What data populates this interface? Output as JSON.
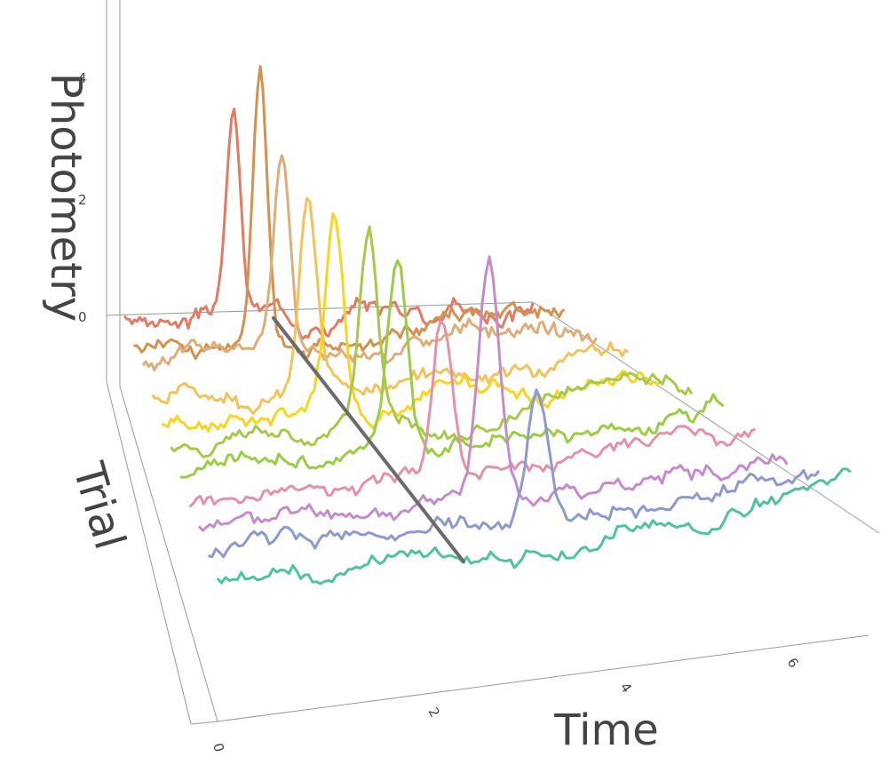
{
  "chart_data": {
    "type": "line",
    "projection": "3d-waterfall",
    "xlabel": "Time",
    "ylabel": "Trial",
    "zlabel": "Photometry",
    "x_ticks": [
      "0",
      "2",
      "4",
      "6"
    ],
    "z_ticks": [
      "0",
      "2",
      "4"
    ],
    "xlim": [
      0,
      7.5
    ],
    "zlim": [
      -1,
      5
    ],
    "trials": 10,
    "event_line_color": "#6b6b6b",
    "series": [
      {
        "color": "#e07b64",
        "peak_x": 2.0,
        "peak_z": 3.3
      },
      {
        "color": "#d29250",
        "peak_x": 2.2,
        "peak_z": 4.8
      },
      {
        "color": "#dcae7a",
        "peak_x": 2.3,
        "peak_z": 3.3
      },
      {
        "color": "#f1c35c",
        "peak_x": 2.45,
        "peak_z": 3.1
      },
      {
        "color": "#f6d622",
        "peak_x": 2.6,
        "peak_z": 3.1
      },
      {
        "color": "#a7c84a",
        "peak_x": 2.85,
        "peak_z": 3.2
      },
      {
        "color": "#9bcc45",
        "peak_x": 3.0,
        "peak_z": 3.2
      },
      {
        "color": "#e293a9",
        "peak_x": 3.35,
        "peak_z": 2.6
      },
      {
        "color": "#c48ccc",
        "peak_x": 3.7,
        "peak_z": 3.8
      },
      {
        "color": "#8d9acb",
        "peak_x": 4.05,
        "peak_z": 2.1
      },
      {
        "color": "#50c29c",
        "peak_x": null,
        "peak_z": null
      }
    ]
  }
}
